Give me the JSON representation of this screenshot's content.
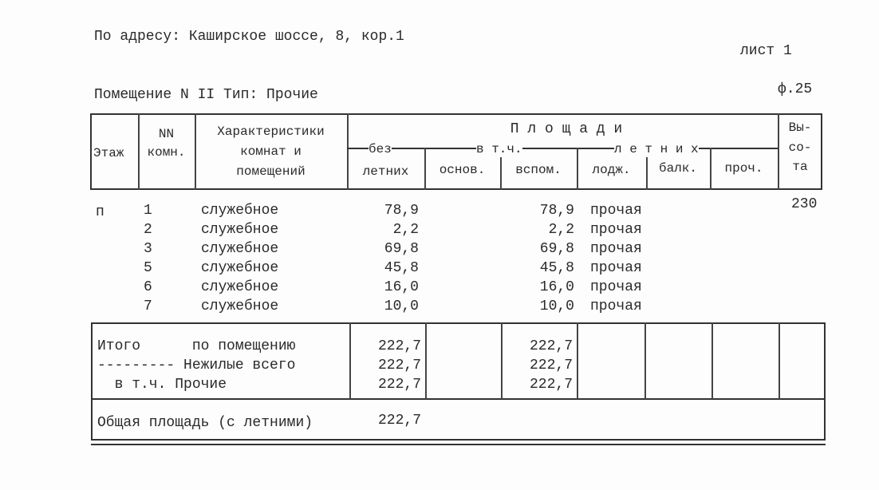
{
  "address": "По адресу: Каширское шоссе, 8, кор.1",
  "sheet": "лист   1",
  "room": "Помещение N II  Тип: Прочие",
  "form": "ф.25",
  "header": {
    "floor": "Этаж",
    "nn": [
      "NN",
      "комн."
    ],
    "char": [
      "Характеристики",
      "комнат и",
      "помещений"
    ],
    "areas": "П л о щ а д и",
    "bez": "без",
    "vtch": "в т.ч.",
    "letnih": "л е т н и х",
    "cols": [
      "летних",
      "основ.",
      "вспом.",
      "лодж.",
      "балк.",
      "проч."
    ],
    "height": [
      "Вы-",
      "со-",
      "та"
    ]
  },
  "floor_value": "п",
  "height_value": "230",
  "rows": [
    {
      "n": "1",
      "name": "служебное",
      "total": "78,9",
      "vspom": "78,9",
      "type": "прочая"
    },
    {
      "n": "2",
      "name": "служебное",
      "total": "2,2",
      "vspom": "2,2",
      "type": "прочая"
    },
    {
      "n": "3",
      "name": "служебное",
      "total": "69,8",
      "vspom": "69,8",
      "type": "прочая"
    },
    {
      "n": "5",
      "name": "служебное",
      "total": "45,8",
      "vspom": "45,8",
      "type": "прочая"
    },
    {
      "n": "6",
      "name": "служебное",
      "total": "16,0",
      "vspom": "16,0",
      "type": "прочая"
    },
    {
      "n": "7",
      "name": "служебное",
      "total": "10,0",
      "vspom": "10,0",
      "type": "прочая"
    }
  ],
  "totals": [
    {
      "label": "Итого      по помещению",
      "total": "222,7",
      "vspom": "222,7"
    },
    {
      "label": "--------- Нежилые всего",
      "total": "222,7",
      "vspom": "222,7"
    },
    {
      "label": "  в т.ч. Прочие",
      "total": "222,7",
      "vspom": "222,7"
    }
  ],
  "overall": {
    "label": "Общая площадь (с летними)",
    "value": "222,7"
  }
}
